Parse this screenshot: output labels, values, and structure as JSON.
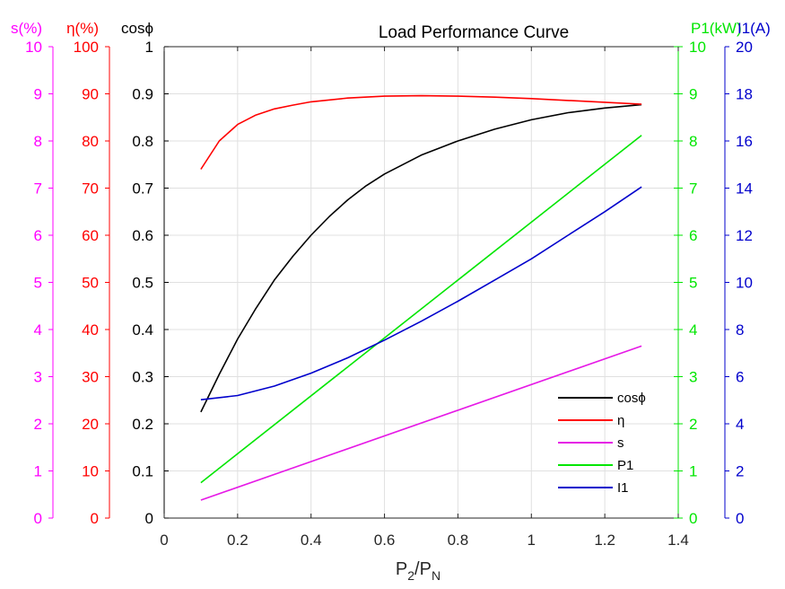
{
  "chart_data": {
    "type": "line",
    "title": "Load Performance Curve",
    "xlabel": {
      "main": "P",
      "sub1": "2",
      "sep": "/P",
      "sub2": "N"
    },
    "xlim": [
      0,
      1.4
    ],
    "x_ticks": [
      "0",
      "0.2",
      "0.4",
      "0.6",
      "0.8",
      "1",
      "1.2",
      "1.4"
    ],
    "grid": true,
    "legend_position": "bottom-right",
    "axes": [
      {
        "id": "s",
        "label": "s(%)",
        "color": "#ff00ff",
        "ylim": [
          0,
          10
        ],
        "ticks": [
          "0",
          "1",
          "2",
          "3",
          "4",
          "5",
          "6",
          "7",
          "8",
          "9",
          "10"
        ]
      },
      {
        "id": "eta",
        "label": "η(%)",
        "color": "#ff0000",
        "ylim": [
          0,
          100
        ],
        "ticks": [
          "0",
          "10",
          "20",
          "30",
          "40",
          "50",
          "60",
          "70",
          "80",
          "90",
          "100"
        ]
      },
      {
        "id": "cos",
        "label": "cosϕ",
        "color": "#000000",
        "ylim": [
          0,
          1
        ],
        "ticks": [
          "0",
          "0.1",
          "0.2",
          "0.3",
          "0.4",
          "0.5",
          "0.6",
          "0.7",
          "0.8",
          "0.9",
          "1"
        ]
      },
      {
        "id": "p1",
        "label": "P1(kW)",
        "color": "#00e600",
        "ylim": [
          0,
          10
        ],
        "ticks": [
          "0",
          "1",
          "2",
          "3",
          "4",
          "5",
          "6",
          "7",
          "8",
          "9",
          "10"
        ]
      },
      {
        "id": "i1",
        "label": "I1(A)",
        "color": "#0000cc",
        "ylim": [
          0,
          20
        ],
        "ticks": [
          "0",
          "2",
          "4",
          "6",
          "8",
          "10",
          "12",
          "14",
          "16",
          "18",
          "20"
        ]
      }
    ],
    "series": [
      {
        "name": "cosϕ",
        "axis": "cos",
        "color": "#000000",
        "x": [
          0.1,
          0.15,
          0.2,
          0.25,
          0.3,
          0.35,
          0.4,
          0.45,
          0.5,
          0.55,
          0.6,
          0.7,
          0.8,
          0.9,
          1.0,
          1.1,
          1.2,
          1.3
        ],
        "y": [
          0.225,
          0.305,
          0.38,
          0.445,
          0.505,
          0.555,
          0.6,
          0.64,
          0.675,
          0.705,
          0.73,
          0.77,
          0.8,
          0.825,
          0.845,
          0.86,
          0.87,
          0.877
        ]
      },
      {
        "name": "η",
        "axis": "eta",
        "color": "#ff0000",
        "x": [
          0.1,
          0.15,
          0.2,
          0.25,
          0.3,
          0.35,
          0.4,
          0.5,
          0.6,
          0.7,
          0.8,
          0.9,
          1.0,
          1.1,
          1.2,
          1.3
        ],
        "y": [
          74,
          80,
          83.5,
          85.5,
          86.8,
          87.6,
          88.3,
          89.1,
          89.5,
          89.6,
          89.5,
          89.3,
          89.0,
          88.6,
          88.2,
          87.8
        ]
      },
      {
        "name": "s",
        "axis": "s",
        "color": "#e619e6",
        "x": [
          0.1,
          1.3
        ],
        "y": [
          0.38,
          3.65
        ]
      },
      {
        "name": "P1",
        "axis": "p1",
        "color": "#00e600",
        "x": [
          0.1,
          1.3
        ],
        "y": [
          0.75,
          8.12
        ]
      },
      {
        "name": "I1",
        "axis": "i1",
        "color": "#0000cc",
        "x": [
          0.1,
          0.2,
          0.3,
          0.4,
          0.5,
          0.6,
          0.7,
          0.8,
          0.9,
          1.0,
          1.1,
          1.2,
          1.3
        ],
        "y": [
          5.02,
          5.2,
          5.6,
          6.15,
          6.8,
          7.55,
          8.35,
          9.2,
          10.1,
          11.0,
          12.0,
          13.0,
          14.05
        ]
      }
    ]
  }
}
